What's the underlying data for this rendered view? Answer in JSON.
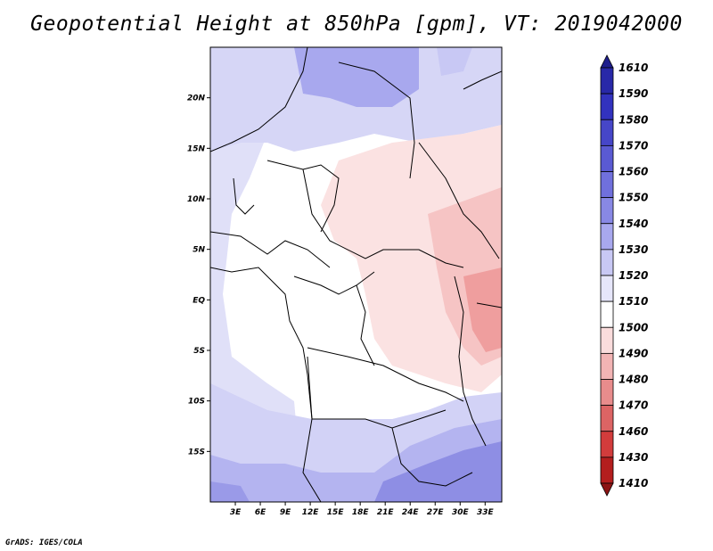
{
  "title": "Geopotential Height at 850hPa [gpm], VT: 2019042000",
  "footer": "GrADS: IGES/COLA",
  "map": {
    "lon_range": [
      0,
      35
    ],
    "lat_range": [
      -20,
      25
    ],
    "lat_ticks": [
      {
        "value": 20,
        "label": "20N"
      },
      {
        "value": 15,
        "label": "15N"
      },
      {
        "value": 10,
        "label": "10N"
      },
      {
        "value": 5,
        "label": "5N"
      },
      {
        "value": 0,
        "label": "EQ"
      },
      {
        "value": -5,
        "label": "5S"
      },
      {
        "value": -10,
        "label": "10S"
      },
      {
        "value": -15,
        "label": "15S"
      }
    ],
    "lon_ticks": [
      {
        "value": 3,
        "label": "3E"
      },
      {
        "value": 6,
        "label": "6E"
      },
      {
        "value": 9,
        "label": "9E"
      },
      {
        "value": 12,
        "label": "12E"
      },
      {
        "value": 15,
        "label": "15E"
      },
      {
        "value": 18,
        "label": "18E"
      },
      {
        "value": 21,
        "label": "21E"
      },
      {
        "value": 24,
        "label": "24E"
      },
      {
        "value": 27,
        "label": "27E"
      },
      {
        "value": 30,
        "label": "30E"
      },
      {
        "value": 33,
        "label": "33E"
      }
    ]
  },
  "colorbar": {
    "labels": [
      "1610",
      "1590",
      "1580",
      "1570",
      "1560",
      "1550",
      "1540",
      "1530",
      "1520",
      "1510",
      "1500",
      "1490",
      "1480",
      "1470",
      "1460",
      "1430",
      "1410"
    ],
    "colors": [
      "#1e1e8c",
      "#2828a8",
      "#3232be",
      "#4646c8",
      "#5a5ad2",
      "#7070dc",
      "#8888e4",
      "#a8a8ee",
      "#c8c8f4",
      "#e6e6fa",
      "#ffffff",
      "#fadcdc",
      "#f2b4b4",
      "#e88c8c",
      "#dc6464",
      "#d23c3c",
      "#b41e1e",
      "#8c1414"
    ]
  }
}
